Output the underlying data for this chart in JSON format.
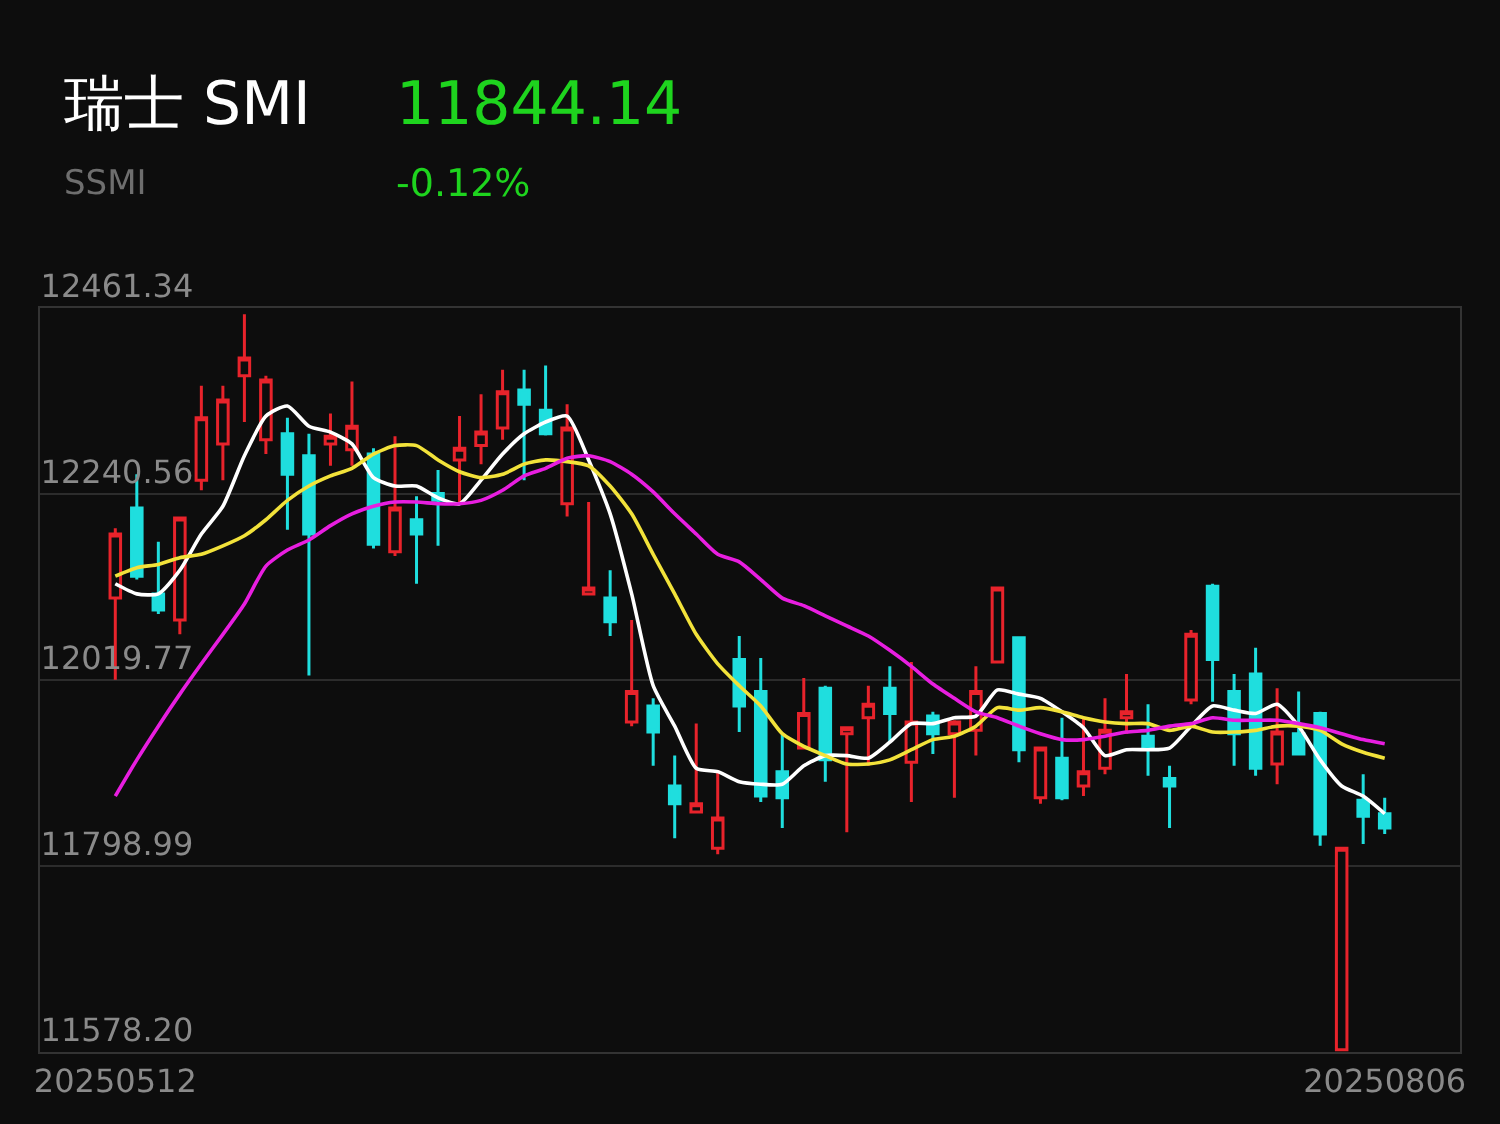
{
  "chart_data": {
    "type": "candlestick",
    "title": "瑞士 SMI",
    "subtitle": "SSMI",
    "annotations": [
      "11844.14",
      "-0.12%"
    ],
    "categories": [
      "20250512",
      null,
      null,
      null,
      null,
      null,
      null,
      null,
      null,
      null,
      null,
      null,
      null,
      null,
      null,
      null,
      null,
      null,
      null,
      null,
      null,
      null,
      null,
      null,
      null,
      null,
      null,
      null,
      null,
      null,
      null,
      null,
      null,
      null,
      null,
      null,
      null,
      null,
      null,
      null,
      null,
      null,
      null,
      null,
      null,
      null,
      null,
      null,
      null,
      null,
      null,
      null,
      null,
      null,
      null,
      null,
      null,
      null,
      null,
      "20250806"
    ],
    "ohlc": [
      [
        12117,
        12200,
        12020,
        12193
      ],
      [
        12224,
        12264,
        12139,
        12143
      ],
      [
        12122,
        12184,
        12098,
        12103
      ],
      [
        12091,
        12214,
        12074,
        12212
      ],
      [
        12257,
        12369,
        12245,
        12331
      ],
      [
        12300,
        12369,
        12257,
        12352
      ],
      [
        12381,
        12454,
        12326,
        12402
      ],
      [
        12305,
        12381,
        12288,
        12376
      ],
      [
        12312,
        12331,
        12198,
        12264
      ],
      [
        12286,
        12312,
        12025,
        12193
      ],
      [
        12300,
        12336,
        12274,
        12309
      ],
      [
        12293,
        12374,
        12274,
        12321
      ],
      [
        12288,
        12295,
        12176,
        12181
      ],
      [
        12172,
        12309,
        12167,
        12224
      ],
      [
        12210,
        12238,
        12134,
        12193
      ],
      [
        12241,
        12269,
        12179,
        12233
      ],
      [
        12281,
        12333,
        12229,
        12295
      ],
      [
        12298,
        12359,
        12276,
        12314
      ],
      [
        12319,
        12388,
        12305,
        12362
      ],
      [
        12364,
        12388,
        12257,
        12347
      ],
      [
        12340,
        12393,
        12310,
        12312
      ],
      [
        12229,
        12347,
        12214,
        12319
      ],
      [
        12122,
        12231,
        12122,
        12129
      ],
      [
        12117,
        12150,
        12072,
        12089
      ],
      [
        11970,
        12091,
        11965,
        12006
      ],
      [
        11989,
        11998,
        11918,
        11958
      ],
      [
        11894,
        11930,
        11832,
        11873
      ],
      [
        11863,
        11968,
        11863,
        11873
      ],
      [
        11820,
        11913,
        11813,
        11856
      ],
      [
        12044,
        12072,
        11958,
        11989
      ],
      [
        12006,
        12046,
        11875,
        11882
      ],
      [
        11911,
        11956,
        11844,
        11880
      ],
      [
        11939,
        12022,
        11939,
        11980
      ],
      [
        12010,
        12013,
        11899,
        11925
      ],
      [
        11956,
        11965,
        11839,
        11963
      ],
      [
        11975,
        12013,
        11918,
        11991
      ],
      [
        12010,
        12036,
        11946,
        11980
      ],
      [
        11922,
        12041,
        11875,
        11970
      ],
      [
        11977,
        11982,
        11932,
        11956
      ],
      [
        11956,
        11972,
        11880,
        11970
      ],
      [
        11960,
        12036,
        11930,
        12006
      ],
      [
        12041,
        12129,
        12041,
        12129
      ],
      [
        12070,
        12070,
        11922,
        11937
      ],
      [
        11880,
        11939,
        11873,
        11939
      ],
      [
        11927,
        11975,
        11877,
        11880
      ],
      [
        11894,
        11975,
        11882,
        11911
      ],
      [
        11915,
        11998,
        11908,
        11960
      ],
      [
        11975,
        12027,
        11956,
        11982
      ],
      [
        11953,
        11991,
        11906,
        11939
      ],
      [
        11903,
        11918,
        11844,
        11894
      ],
      [
        11996,
        12079,
        11991,
        12074
      ],
      [
        12131,
        12134,
        11994,
        12044
      ],
      [
        12006,
        12027,
        11918,
        11956
      ],
      [
        12027,
        12058,
        11906,
        11915
      ],
      [
        11920,
        12010,
        11896,
        11958
      ],
      [
        11956,
        12006,
        11930,
        11932
      ],
      [
        11980,
        11982,
        11823,
        11837
      ],
      [
        11581,
        11820,
        11581,
        11820
      ],
      [
        11877,
        11908,
        11825,
        11858
      ],
      [
        11861,
        11880,
        11837,
        11844
      ]
    ],
    "colors": [
      "#e8232b",
      "#1fdede",
      "#1fdede",
      "#e8232b",
      "#e8232b",
      "#e8232b",
      "#e8232b",
      "#e8232b",
      "#1fdede",
      "#1fdede",
      "#e8232b",
      "#e8232b",
      "#1fdede",
      "#e8232b",
      "#1fdede",
      "#1fdede",
      "#e8232b",
      "#e8232b",
      "#e8232b",
      "#1fdede",
      "#1fdede",
      "#e8232b",
      "#e8232b",
      "#1fdede",
      "#e8232b",
      "#1fdede",
      "#1fdede",
      "#e8232b",
      "#e8232b",
      "#1fdede",
      "#1fdede",
      "#1fdede",
      "#e8232b",
      "#1fdede",
      "#e8232b",
      "#e8232b",
      "#1fdede",
      "#e8232b",
      "#1fdede",
      "#e8232b",
      "#e8232b",
      "#e8232b",
      "#1fdede",
      "#e8232b",
      "#1fdede",
      "#e8232b",
      "#e8232b",
      "#e8232b",
      "#1fdede",
      "#1fdede",
      "#e8232b",
      "#1fdede",
      "#1fdede",
      "#1fdede",
      "#e8232b",
      "#1fdede",
      "#1fdede",
      "#e8232b",
      "#1fdede",
      "#1fdede"
    ],
    "series": [
      {
        "type": "line",
        "color": "#ffffff",
        "values": [
          12134,
          12122,
          12122,
          12150,
          12193,
          12226,
          12286,
          12333,
          12345,
          12321,
          12314,
          12300,
          12260,
          12250,
          12250,
          12236,
          12229,
          12257,
          12288,
          12312,
          12326,
          12333,
          12281,
          12217,
          12122,
          12013,
          11965,
          11915,
          11911,
          11899,
          11896,
          11896,
          11918,
          11930,
          11930,
          11927,
          11946,
          11968,
          11968,
          11975,
          11977,
          12008,
          12003,
          11998,
          11982,
          11963,
          11930,
          11937,
          11937,
          11939,
          11965,
          11989,
          11984,
          11980,
          11991,
          11965,
          11925,
          11894,
          11882,
          11861
        ]
      },
      {
        "type": "line",
        "color": "#f2e23a",
        "values": [
          12143,
          12153,
          12157,
          12165,
          12169,
          12179,
          12191,
          12210,
          12233,
          12250,
          12262,
          12271,
          12288,
          12298,
          12298,
          12281,
          12267,
          12260,
          12264,
          12276,
          12281,
          12279,
          12274,
          12250,
          12217,
          12169,
          12122,
          12074,
          12039,
          12013,
          11989,
          11956,
          11941,
          11930,
          11920,
          11920,
          11925,
          11937,
          11949,
          11953,
          11965,
          11987,
          11984,
          11987,
          11982,
          11975,
          11970,
          11968,
          11968,
          11960,
          11965,
          11958,
          11958,
          11960,
          11965,
          11965,
          11960,
          11944,
          11934,
          11927
        ]
      },
      {
        "type": "line",
        "color": "#e81ee0",
        "values": [
          11882,
          11925,
          11965,
          12003,
          12039,
          12074,
          12110,
          12155,
          12174,
          12186,
          12203,
          12217,
          12226,
          12231,
          12231,
          12229,
          12229,
          12233,
          12245,
          12262,
          12271,
          12283,
          12286,
          12279,
          12264,
          12243,
          12217,
          12193,
          12169,
          12160,
          12139,
          12117,
          12108,
          12096,
          12084,
          12072,
          12055,
          12036,
          12015,
          11998,
          11982,
          11975,
          11965,
          11956,
          11949,
          11949,
          11953,
          11958,
          11960,
          11965,
          11968,
          11975,
          11972,
          11972,
          11972,
          11968,
          11963,
          11956,
          11949,
          11944
        ]
      }
    ],
    "ylim": [
      11578.2,
      12461.34
    ],
    "yticks": [
      {
        "value": 12461.34,
        "label": "12461.34"
      },
      {
        "value": 12240.56,
        "label": "12240.56"
      },
      {
        "value": 12019.77,
        "label": "12019.77"
      },
      {
        "value": 11798.99,
        "label": "11798.99"
      },
      {
        "value": 11578.2,
        "label": "11578.20"
      }
    ],
    "grid": "y"
  }
}
